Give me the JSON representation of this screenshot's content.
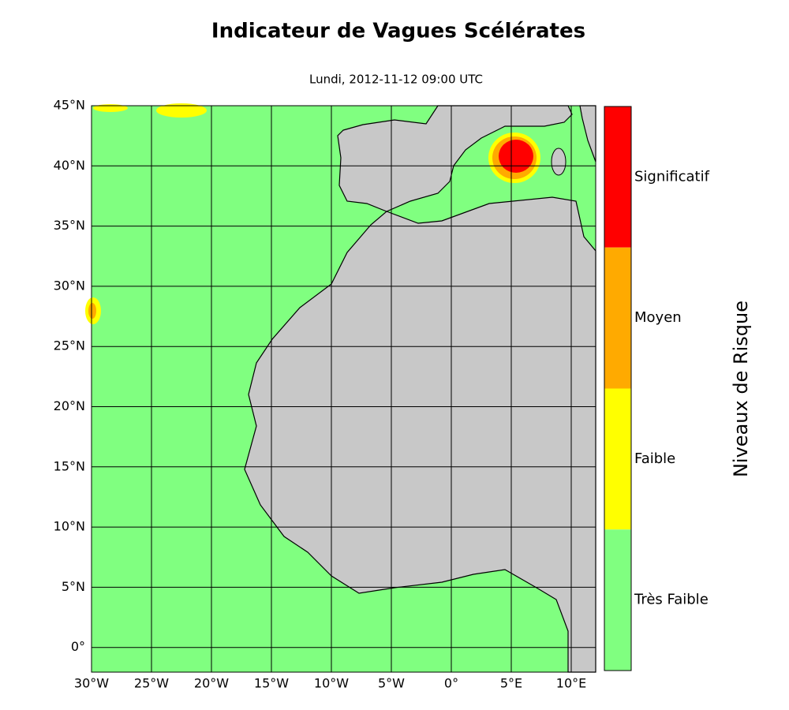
{
  "map": {
    "title": "Indicateur de Vagues Scélérates",
    "subtitle": "Lundi, 2012-11-12 09:00 UTC",
    "lat_labels": [
      "45°N",
      "40°N",
      "35°N",
      "30°N",
      "25°N",
      "20°N",
      "15°N",
      "10°N",
      "5°N",
      "0°"
    ],
    "lon_labels": [
      "30°W",
      "25°W",
      "20°W",
      "15°W",
      "10°W",
      "5°W",
      "0°",
      "5°E",
      "10°E"
    ],
    "colorbar": {
      "label": "Niveaux de Risque",
      "levels": [
        {
          "name": "Significatif",
          "color": "#ff0000"
        },
        {
          "name": "Moyen",
          "color": "#ffaa00"
        },
        {
          "name": "Faible",
          "color": "#ffff00"
        },
        {
          "name": "Très Faible",
          "color": "#80ff80"
        }
      ]
    }
  }
}
